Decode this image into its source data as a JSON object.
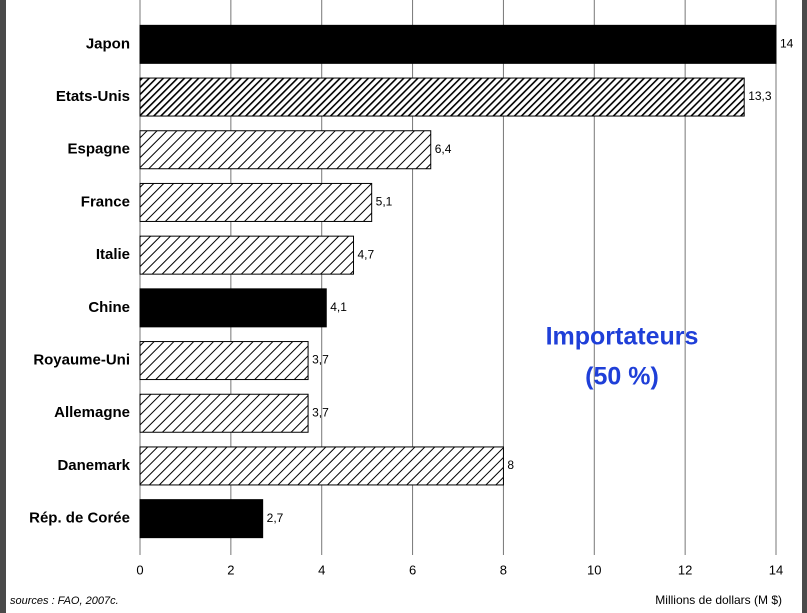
{
  "chart_data": {
    "type": "hbar",
    "categories": [
      "Japon",
      "Etats-Unis",
      "Espagne",
      "France",
      "Italie",
      "Chine",
      "Royaume-Uni",
      "Allemagne",
      "Danemark",
      "Rép. de Corée"
    ],
    "values": [
      14,
      13.3,
      6.4,
      5.1,
      4.7,
      4.1,
      3.7,
      3.7,
      8,
      2.7
    ],
    "value_labels": [
      "14",
      "13,3",
      "6,4",
      "5,1",
      "4,7",
      "4,1",
      "3,7",
      "3,7",
      "8",
      "2,7"
    ],
    "bar_styles": [
      "solid",
      "dense",
      "hatch",
      "hatch",
      "hatch",
      "solid",
      "hatch",
      "hatch",
      "hatch",
      "solid"
    ],
    "color": "#000000",
    "xlim": [
      0,
      14
    ],
    "xticks": [
      0,
      2,
      4,
      6,
      8,
      10,
      12,
      14
    ],
    "grid": true,
    "xlabel": "Millions de dollars (M $)",
    "source": "sources : FAO, 2007c.",
    "annotation": [
      "Importateurs",
      "(50 %)"
    ]
  }
}
